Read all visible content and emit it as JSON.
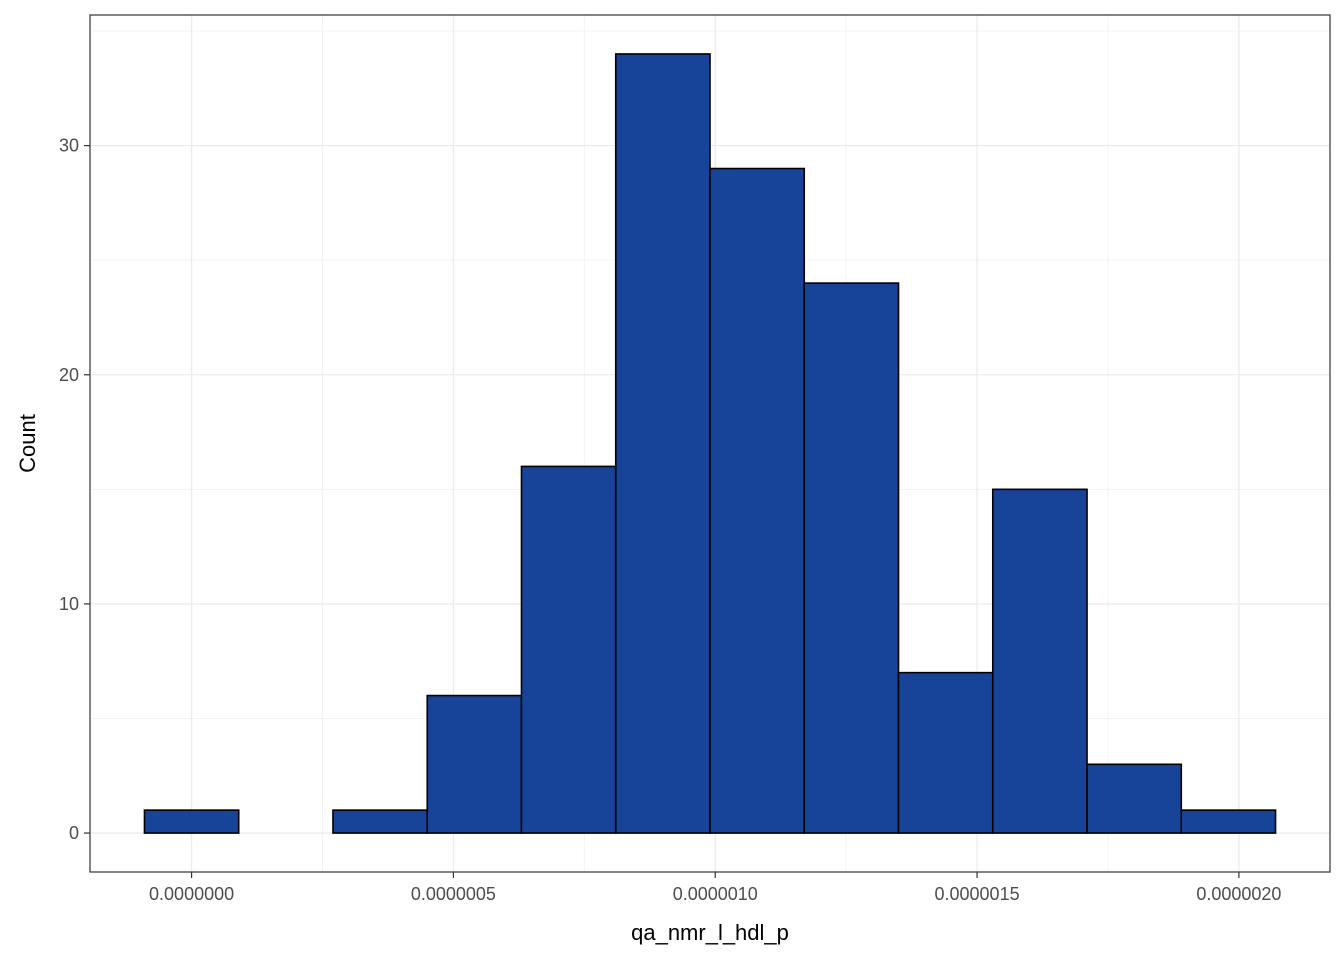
{
  "chart_data": {
    "type": "bar",
    "subtype": "histogram",
    "title": "",
    "xlabel": "qa_nmr_l_hdl_p",
    "ylabel": "Count",
    "bin_width": 1.8e-07,
    "bins": [
      {
        "x_start": -9e-08,
        "x_end": 9e-08,
        "count": 1
      },
      {
        "x_start": 9e-08,
        "x_end": 2.7e-07,
        "count": 0
      },
      {
        "x_start": 2.7e-07,
        "x_end": 4.5e-07,
        "count": 1
      },
      {
        "x_start": 4.5e-07,
        "x_end": 6.3e-07,
        "count": 6
      },
      {
        "x_start": 6.3e-07,
        "x_end": 8.1e-07,
        "count": 16
      },
      {
        "x_start": 8.1e-07,
        "x_end": 9.9e-07,
        "count": 34
      },
      {
        "x_start": 9.9e-07,
        "x_end": 1.17e-06,
        "count": 29
      },
      {
        "x_start": 1.17e-06,
        "x_end": 1.35e-06,
        "count": 24
      },
      {
        "x_start": 1.35e-06,
        "x_end": 1.53e-06,
        "count": 7
      },
      {
        "x_start": 1.53e-06,
        "x_end": 1.71e-06,
        "count": 15
      },
      {
        "x_start": 1.71e-06,
        "x_end": 1.89e-06,
        "count": 3
      },
      {
        "x_start": 1.89e-06,
        "x_end": 2.07e-06,
        "count": 1
      }
    ],
    "x_ticks": [
      {
        "value": 0.0,
        "label": "0.0000000"
      },
      {
        "value": 5e-07,
        "label": "0.0000005"
      },
      {
        "value": 1e-06,
        "label": "0.0000010"
      },
      {
        "value": 1.5e-06,
        "label": "0.0000015"
      },
      {
        "value": 2e-06,
        "label": "0.0000020"
      }
    ],
    "y_ticks": [
      {
        "value": 0,
        "label": "0"
      },
      {
        "value": 10,
        "label": "10"
      },
      {
        "value": 20,
        "label": "20"
      },
      {
        "value": 30,
        "label": "30"
      }
    ],
    "xlim": [
      -1.94e-07,
      2.174e-06
    ],
    "ylim": [
      -1.7,
      35.7
    ],
    "grid": true,
    "colors": {
      "bar_fill": "#174499",
      "bar_outline": "#000000",
      "grid_major": "#ebebeb",
      "grid_minor": "#f3f3f3",
      "panel_border": "#333333"
    }
  }
}
